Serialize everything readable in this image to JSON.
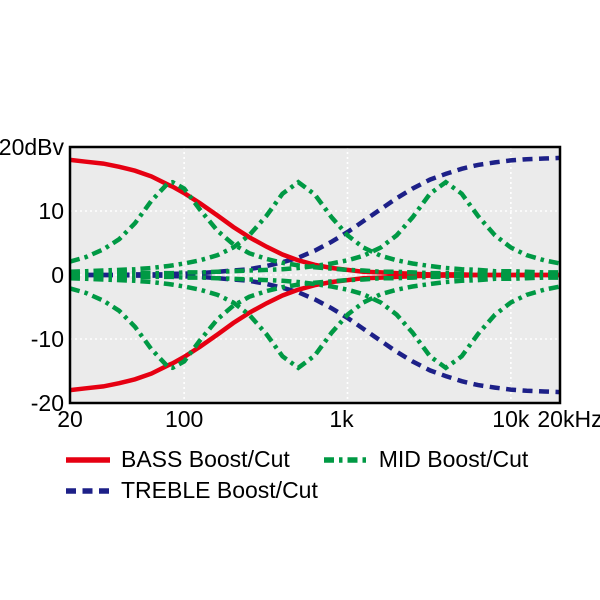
{
  "colors": {
    "bass": "#e60012",
    "mid": "#009944",
    "treble": "#1d2088",
    "plot_background": "#ebebeb",
    "gridline": "#ffffff",
    "border": "#000000",
    "text": "#000000",
    "page_background": "#ffffff"
  },
  "chart_data": {
    "type": "line",
    "title": "",
    "description": "Tone control frequency response curves: BASS / MID / TREBLE boost and cut",
    "x_axis": {
      "scale": "log",
      "unit": "Hz",
      "min": 20,
      "max": 20000,
      "ticks": [
        {
          "value": 20,
          "label": "20",
          "dx": 0
        },
        {
          "value": 100,
          "label": "100",
          "dx": 0
        },
        {
          "value": 1000,
          "label": "1k",
          "dx": -6
        },
        {
          "value": 10000,
          "label": "10k",
          "dx": 0
        },
        {
          "value": 20000,
          "label": "20kHz",
          "dx": 10
        }
      ],
      "gridlines": [
        100,
        1000,
        10000
      ]
    },
    "y_axis": {
      "scale": "linear",
      "unit": "dBv",
      "min": -20,
      "max": 20,
      "ticks": [
        {
          "value": 20,
          "label": "20dBv"
        },
        {
          "value": 10,
          "label": "10"
        },
        {
          "value": 0,
          "label": "0"
        },
        {
          "value": -10,
          "label": "-10"
        },
        {
          "value": -20,
          "label": "-20"
        }
      ],
      "gridlines": [
        10,
        0,
        -10
      ]
    },
    "frequencies_hz": [
      20,
      25,
      32,
      40,
      50,
      63,
      80,
      85,
      100,
      125,
      160,
      200,
      250,
      320,
      400,
      500,
      630,
      800,
      1000,
      1250,
      1600,
      2000,
      2500,
      3200,
      4000,
      5000,
      6300,
      8000,
      10000,
      12500,
      16000,
      20000
    ],
    "series": [
      {
        "name": "treble-boost",
        "group": "TREBLE",
        "color": "#1d2088",
        "style": "dashed",
        "values_db": [
          0.0,
          0.0,
          0.0,
          0.0,
          0.1,
          0.1,
          0.1,
          0.2,
          0.2,
          0.3,
          0.5,
          0.7,
          0.9,
          1.4,
          2.0,
          2.7,
          3.8,
          5.2,
          6.7,
          8.4,
          10.3,
          12.0,
          13.5,
          14.9,
          15.8,
          16.6,
          17.2,
          17.6,
          17.9,
          18.1,
          18.2,
          18.3
        ]
      },
      {
        "name": "treble-cut",
        "group": "TREBLE",
        "color": "#1d2088",
        "style": "dashed",
        "values_db": [
          0.0,
          0.0,
          0.0,
          0.0,
          -0.1,
          -0.1,
          -0.1,
          -0.2,
          -0.2,
          -0.3,
          -0.5,
          -0.7,
          -0.9,
          -1.4,
          -2.0,
          -2.7,
          -3.8,
          -5.2,
          -6.7,
          -8.4,
          -10.3,
          -12.0,
          -13.5,
          -14.9,
          -15.8,
          -16.6,
          -17.2,
          -17.6,
          -17.9,
          -18.1,
          -18.2,
          -18.3
        ]
      },
      {
        "name": "bass-boost",
        "group": "BASS",
        "color": "#e60012",
        "style": "solid",
        "values_db": [
          18.0,
          17.7,
          17.4,
          16.9,
          16.3,
          15.4,
          14.1,
          13.8,
          12.8,
          11.2,
          9.3,
          7.5,
          5.9,
          4.4,
          3.2,
          2.3,
          1.6,
          1.1,
          0.8,
          0.5,
          0.4,
          0.3,
          0.2,
          0.1,
          0.1,
          0.1,
          0.0,
          0.0,
          0.0,
          0.0,
          0.0,
          0.0
        ]
      },
      {
        "name": "bass-cut",
        "group": "BASS",
        "color": "#e60012",
        "style": "solid",
        "values_db": [
          -18.0,
          -17.7,
          -17.4,
          -16.9,
          -16.3,
          -15.4,
          -14.1,
          -13.8,
          -12.8,
          -11.2,
          -9.3,
          -7.5,
          -5.9,
          -4.4,
          -3.2,
          -2.3,
          -1.6,
          -1.1,
          -0.8,
          -0.5,
          -0.4,
          -0.3,
          -0.2,
          -0.1,
          -0.1,
          -0.1,
          0.0,
          0.0,
          0.0,
          0.0,
          0.0,
          0.0
        ]
      },
      {
        "name": "mid-boost-85hz",
        "group": "MID",
        "color": "#009944",
        "style": "dashdot",
        "values_db": [
          2.1,
          2.8,
          4.0,
          5.6,
          8.1,
          11.6,
          14.4,
          14.5,
          13.5,
          10.2,
          6.9,
          4.8,
          3.4,
          2.5,
          1.9,
          1.5,
          1.2,
          1.0,
          0.8,
          0.7,
          0.5,
          0.5,
          0.4,
          0.3,
          0.3,
          0.2,
          0.2,
          0.2,
          0.1,
          0.1,
          0.1,
          0.1
        ]
      },
      {
        "name": "mid-cut-85hz",
        "group": "MID",
        "color": "#009944",
        "style": "dashdot",
        "values_db": [
          -2.1,
          -2.8,
          -4.0,
          -5.6,
          -8.1,
          -11.6,
          -14.4,
          -14.5,
          -13.5,
          -10.2,
          -6.9,
          -4.8,
          -3.4,
          -2.5,
          -1.9,
          -1.5,
          -1.2,
          -1.0,
          -0.8,
          -0.7,
          -0.5,
          -0.5,
          -0.4,
          -0.3,
          -0.3,
          -0.2,
          -0.2,
          -0.2,
          -0.1,
          -0.1,
          -0.1,
          -0.1
        ]
      },
      {
        "name": "mid-boost-500hz",
        "group": "MID",
        "color": "#009944",
        "style": "dashdot",
        "values_db": [
          0.5,
          0.6,
          0.7,
          0.8,
          0.9,
          1.1,
          1.4,
          1.5,
          1.8,
          2.3,
          3.1,
          4.3,
          6.2,
          9.3,
          12.7,
          14.5,
          12.6,
          9.0,
          6.2,
          4.3,
          3.0,
          2.3,
          1.8,
          1.4,
          1.1,
          0.9,
          0.8,
          0.6,
          0.6,
          0.5,
          0.4,
          0.4
        ]
      },
      {
        "name": "mid-cut-500hz",
        "group": "MID",
        "color": "#009944",
        "style": "dashdot",
        "values_db": [
          -0.5,
          -0.6,
          -0.7,
          -0.8,
          -0.9,
          -1.1,
          -1.4,
          -1.5,
          -1.8,
          -2.3,
          -3.1,
          -4.3,
          -6.2,
          -9.3,
          -12.7,
          -14.5,
          -12.6,
          -9.0,
          -6.2,
          -4.3,
          -3.0,
          -2.3,
          -1.8,
          -1.4,
          -1.1,
          -0.9,
          -0.8,
          -0.6,
          -0.6,
          -0.5,
          -0.4,
          -0.4
        ]
      },
      {
        "name": "mid-boost-4khz",
        "group": "MID",
        "color": "#009944",
        "style": "dashdot",
        "values_db": [
          0.2,
          0.2,
          0.2,
          0.2,
          0.3,
          0.3,
          0.3,
          0.3,
          0.4,
          0.4,
          0.5,
          0.6,
          0.7,
          0.8,
          0.9,
          1.1,
          1.4,
          1.8,
          2.3,
          3.0,
          4.3,
          6.2,
          9.0,
          12.7,
          14.5,
          12.7,
          9.2,
          6.2,
          4.3,
          3.1,
          2.3,
          1.8
        ]
      },
      {
        "name": "mid-cut-4khz",
        "group": "MID",
        "color": "#009944",
        "style": "dashdot",
        "values_db": [
          -0.2,
          -0.2,
          -0.2,
          -0.2,
          -0.3,
          -0.3,
          -0.3,
          -0.3,
          -0.4,
          -0.4,
          -0.5,
          -0.6,
          -0.7,
          -0.8,
          -0.9,
          -1.1,
          -1.4,
          -1.8,
          -2.3,
          -3.0,
          -4.3,
          -6.2,
          -9.0,
          -12.7,
          -14.5,
          -12.7,
          -9.2,
          -6.2,
          -4.3,
          -3.1,
          -2.3,
          -1.8
        ]
      }
    ],
    "legend": {
      "position": "bottom-left",
      "entries": [
        {
          "label": "BASS Boost/Cut",
          "color": "#e60012",
          "style": "solid"
        },
        {
          "label": "MID Boost/Cut",
          "color": "#009944",
          "style": "dashdot"
        },
        {
          "label": "TREBLE Boost/Cut",
          "color": "#1d2088",
          "style": "dashed"
        }
      ]
    }
  }
}
